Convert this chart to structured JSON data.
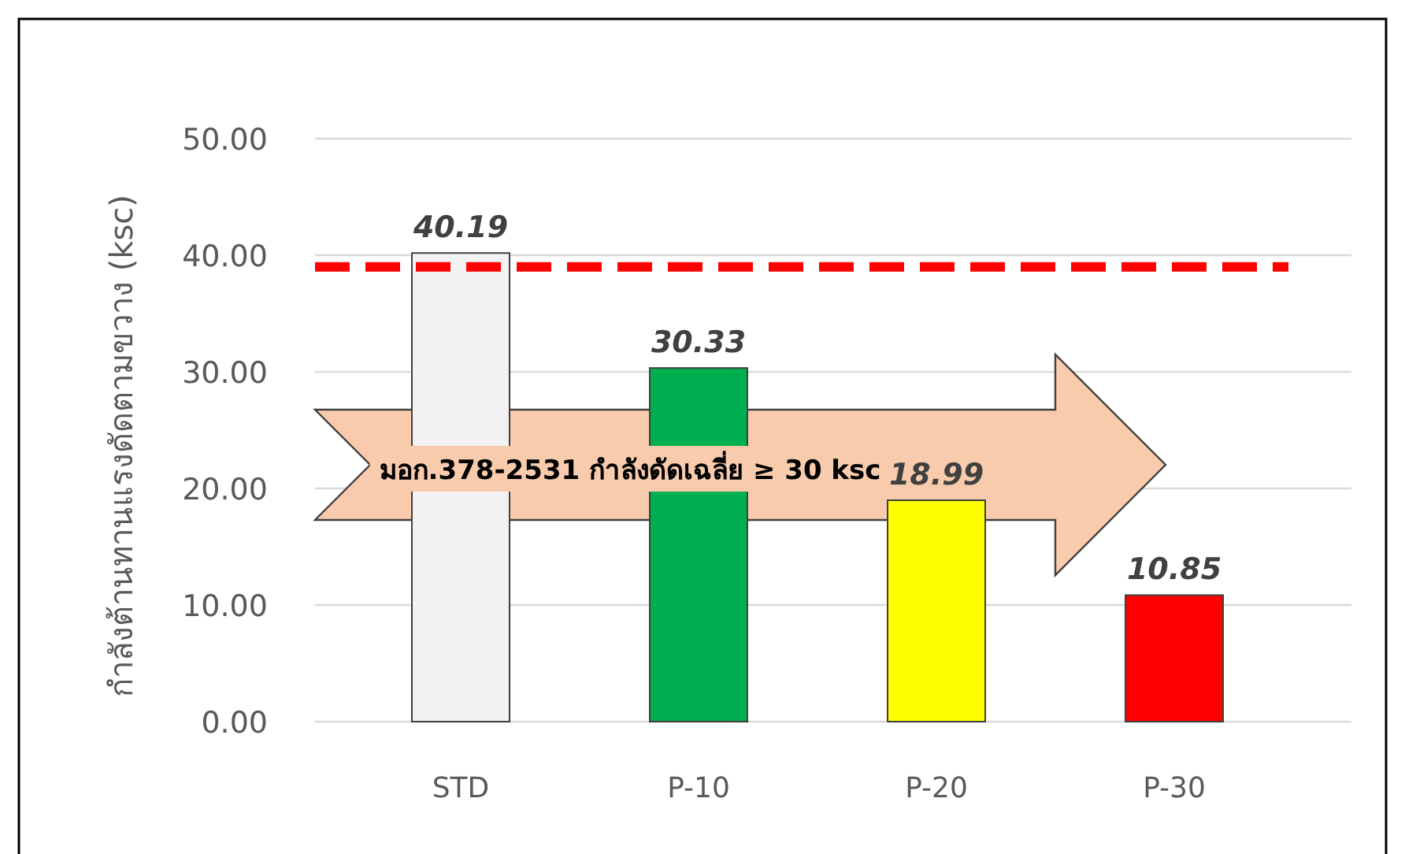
{
  "chart_data": {
    "type": "bar",
    "ylabel": "กำลังต้านทานแรงดัดตามขวาง (ksc)",
    "categories": [
      "STD",
      "P-10",
      "P-20",
      "P-30"
    ],
    "values": [
      40.19,
      30.33,
      18.99,
      10.85
    ],
    "colors": [
      "#f2f2f2",
      "#00b050",
      "#ffff00",
      "#ff0000"
    ],
    "ylim": [
      0,
      50
    ],
    "yticks": [
      {
        "value": 0,
        "label": "0.00"
      },
      {
        "value": 10,
        "label": "10.00"
      },
      {
        "value": 20,
        "label": "20.00"
      },
      {
        "value": 30,
        "label": "30.00"
      },
      {
        "value": 40,
        "label": "40.00"
      },
      {
        "value": 50,
        "label": "50.00"
      }
    ],
    "grid": "y",
    "data_labels": true,
    "ref_lines": [
      {
        "axis": "y",
        "value": 39,
        "color": "#ff0000",
        "line_style": "dashed"
      }
    ],
    "annotations": [
      "มอก.378-2531 กำลังดัดเฉลี่ย ≥ 30 ksc"
    ]
  }
}
